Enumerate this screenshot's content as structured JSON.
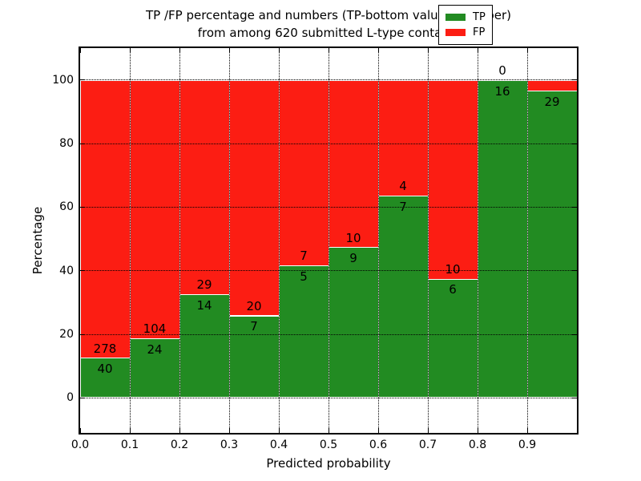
{
  "title": {
    "line1": "TP /FP percentage and numbers (TP-bottom value, FP-upper)",
    "line2": "from among 620 submitted L-type contacts"
  },
  "x_axis": {
    "label": "Predicted probability",
    "ticks": [
      "0.0",
      "0.1",
      "0.2",
      "0.3",
      "0.4",
      "0.5",
      "0.6",
      "0.7",
      "0.8",
      "0.9"
    ]
  },
  "y_axis": {
    "label": "Percentage",
    "ticks": [
      {
        "value": 0,
        "label": "0"
      },
      {
        "value": 20,
        "label": "20"
      },
      {
        "value": 40,
        "label": "40"
      },
      {
        "value": 60,
        "label": "60"
      },
      {
        "value": 80,
        "label": "80"
      },
      {
        "value": 100,
        "label": "100"
      }
    ]
  },
  "legend": {
    "items": [
      {
        "label": "TP",
        "color": "#228B22"
      },
      {
        "label": "FP",
        "color": "#FC1D13"
      }
    ]
  },
  "colors": {
    "tp": "#228B22",
    "fp": "#FC1D13",
    "grid": "#000000",
    "frame": "#000000",
    "bar_edge": "#ffffff",
    "background": "#ffffff"
  },
  "chart_data": {
    "type": "bar",
    "stacked": true,
    "orientation": "vertical",
    "title": "TP /FP percentage and numbers (TP-bottom value, FP-upper) from among 620 submitted L-type contacts",
    "xlabel": "Predicted probability",
    "ylabel": "Percentage",
    "xlim": [
      0.0,
      1.0
    ],
    "ylim": [
      -11,
      110
    ],
    "grid": true,
    "legend_position": "upper right",
    "total_contacts": 620,
    "bins": [
      "0.0-0.1",
      "0.1-0.2",
      "0.2-0.3",
      "0.3-0.4",
      "0.4-0.5",
      "0.5-0.6",
      "0.6-0.7",
      "0.7-0.8",
      "0.8-0.9",
      "0.9-1.0"
    ],
    "series": [
      {
        "name": "TP",
        "color": "#228B22",
        "counts": [
          40,
          24,
          14,
          7,
          5,
          9,
          7,
          6,
          16,
          29
        ]
      },
      {
        "name": "FP",
        "color": "#FC1D13",
        "counts": [
          278,
          104,
          29,
          20,
          7,
          10,
          4,
          10,
          0,
          null
        ]
      }
    ],
    "tp_percent": [
      12.58,
      18.75,
      32.56,
      25.93,
      41.67,
      47.37,
      63.64,
      37.5,
      100.0,
      96.67
    ],
    "bar_labels": {
      "tp": [
        "40",
        "24",
        "14",
        "7",
        "5",
        "9",
        "7",
        "6",
        "16",
        "29"
      ],
      "fp": [
        "278",
        "104",
        "29",
        "20",
        "7",
        "10",
        "4",
        "10",
        "0",
        ""
      ]
    }
  }
}
